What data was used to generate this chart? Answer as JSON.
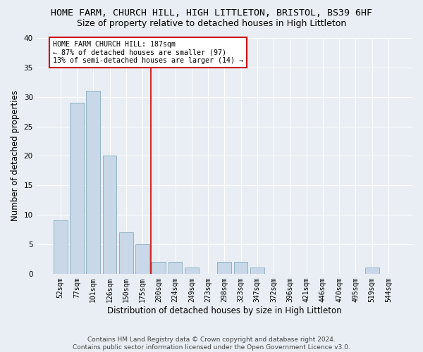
{
  "title": "HOME FARM, CHURCH HILL, HIGH LITTLETON, BRISTOL, BS39 6HF",
  "subtitle": "Size of property relative to detached houses in High Littleton",
  "xlabel": "Distribution of detached houses by size in High Littleton",
  "ylabel": "Number of detached properties",
  "categories": [
    "52sqm",
    "77sqm",
    "101sqm",
    "126sqm",
    "150sqm",
    "175sqm",
    "200sqm",
    "224sqm",
    "249sqm",
    "273sqm",
    "298sqm",
    "323sqm",
    "347sqm",
    "372sqm",
    "396sqm",
    "421sqm",
    "446sqm",
    "470sqm",
    "495sqm",
    "519sqm",
    "544sqm"
  ],
  "values": [
    9,
    29,
    31,
    20,
    7,
    5,
    2,
    2,
    1,
    0,
    2,
    2,
    1,
    0,
    0,
    0,
    0,
    0,
    0,
    1,
    0
  ],
  "bar_color": "#c8d8e8",
  "bar_edge_color": "#88aabb",
  "ylim": [
    0,
    40
  ],
  "yticks": [
    0,
    5,
    10,
    15,
    20,
    25,
    30,
    35,
    40
  ],
  "vline_pos": 5.5,
  "vline_color": "#cc0000",
  "annotation_text": "HOME FARM CHURCH HILL: 187sqm\n← 87% of detached houses are smaller (97)\n13% of semi-detached houses are larger (14) →",
  "annotation_box_color": "#ffffff",
  "annotation_box_edgecolor": "#cc0000",
  "footer": "Contains HM Land Registry data © Crown copyright and database right 2024.\nContains public sector information licensed under the Open Government Licence v3.0.",
  "background_color": "#e8eef4",
  "plot_bg_color": "#e8eef4",
  "grid_color": "#ffffff",
  "title_fontsize": 9.5,
  "subtitle_fontsize": 9,
  "tick_fontsize": 7,
  "ylabel_fontsize": 8.5,
  "xlabel_fontsize": 8.5,
  "footer_fontsize": 6.5
}
